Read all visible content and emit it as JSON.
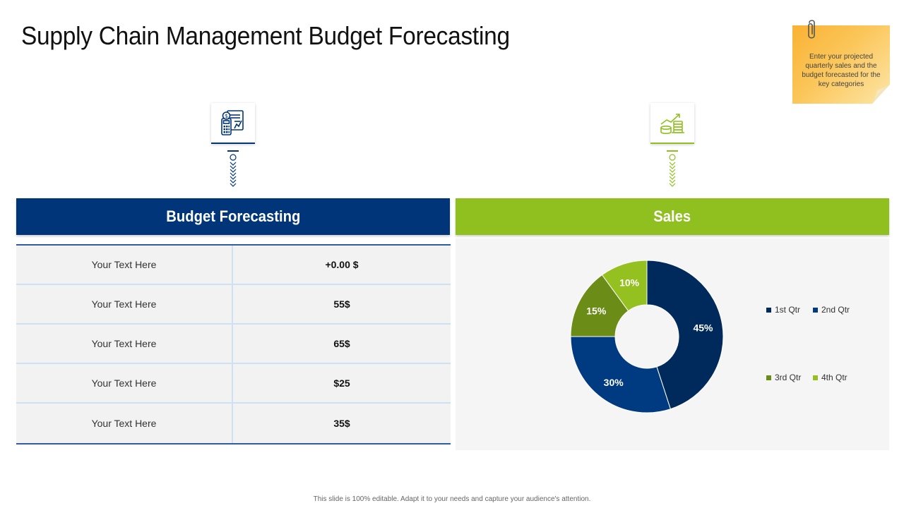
{
  "slide": {
    "title": "Supply Chain Management Budget Forecasting",
    "footer": "This slide is 100% editable. Adapt it to your needs and capture your audience's attention."
  },
  "sticky_note": {
    "text": "Enter your projected quarterly sales and the budget forecasted for the key categories"
  },
  "icons": {
    "budget": "budget-calculator-icon",
    "sales": "sales-growth-icon"
  },
  "budget_panel": {
    "title": "Budget Forecasting",
    "rows": [
      {
        "label": "Your Text Here",
        "value": "+0.00 $"
      },
      {
        "label": "Your Text Here",
        "value": "55$"
      },
      {
        "label": "Your Text Here",
        "value": "65$"
      },
      {
        "label": "Your Text Here",
        "value": "$25"
      },
      {
        "label": "Your Text Here",
        "value": "35$"
      }
    ]
  },
  "sales_panel": {
    "title": "Sales"
  },
  "colors": {
    "navy": "#003679",
    "green": "#8fc01f",
    "q1": "#002a5c",
    "q2": "#003a80",
    "q3": "#6b8c16",
    "q4": "#94c11f"
  },
  "chart_data": {
    "type": "pie",
    "donut": true,
    "title": "",
    "categories": [
      "1st Qtr",
      "2nd Qtr",
      "3rd Qtr",
      "4th Qtr"
    ],
    "values": [
      45,
      30,
      15,
      10
    ],
    "data_labels": [
      "45%",
      "30%",
      "15%",
      "10%"
    ],
    "legend_placement": "right"
  }
}
